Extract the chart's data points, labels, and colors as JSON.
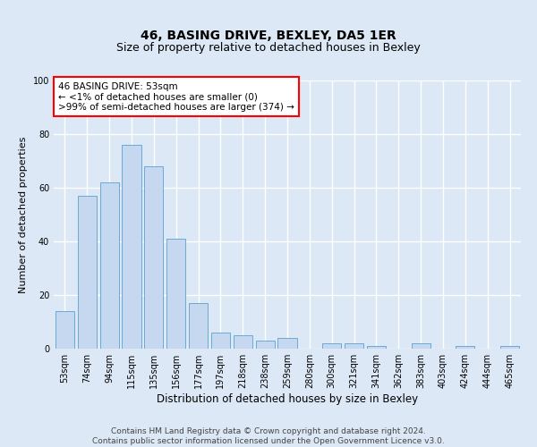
{
  "title": "46, BASING DRIVE, BEXLEY, DA5 1ER",
  "subtitle": "Size of property relative to detached houses in Bexley",
  "xlabel": "Distribution of detached houses by size in Bexley",
  "ylabel": "Number of detached properties",
  "categories": [
    "53sqm",
    "74sqm",
    "94sqm",
    "115sqm",
    "135sqm",
    "156sqm",
    "177sqm",
    "197sqm",
    "218sqm",
    "238sqm",
    "259sqm",
    "280sqm",
    "300sqm",
    "321sqm",
    "341sqm",
    "362sqm",
    "383sqm",
    "403sqm",
    "424sqm",
    "444sqm",
    "465sqm"
  ],
  "values": [
    14,
    57,
    62,
    76,
    68,
    41,
    17,
    6,
    5,
    3,
    4,
    0,
    2,
    2,
    1,
    0,
    2,
    0,
    1,
    0,
    1
  ],
  "bar_color": "#c5d8f0",
  "bar_edge_color": "#6aaad4",
  "highlight_index": 0,
  "annotation_box_text": "46 BASING DRIVE: 53sqm\n← <1% of detached houses are smaller (0)\n>99% of semi-detached houses are larger (374) →",
  "ylim": [
    0,
    100
  ],
  "background_color": "#dce8f5",
  "plot_background_color": "#dce8f5",
  "grid_color": "#ffffff",
  "footer_line1": "Contains HM Land Registry data © Crown copyright and database right 2024.",
  "footer_line2": "Contains public sector information licensed under the Open Government Licence v3.0.",
  "title_fontsize": 10,
  "subtitle_fontsize": 9,
  "xlabel_fontsize": 8.5,
  "ylabel_fontsize": 8,
  "tick_fontsize": 7,
  "footer_fontsize": 6.5,
  "annotation_fontsize": 7.5
}
